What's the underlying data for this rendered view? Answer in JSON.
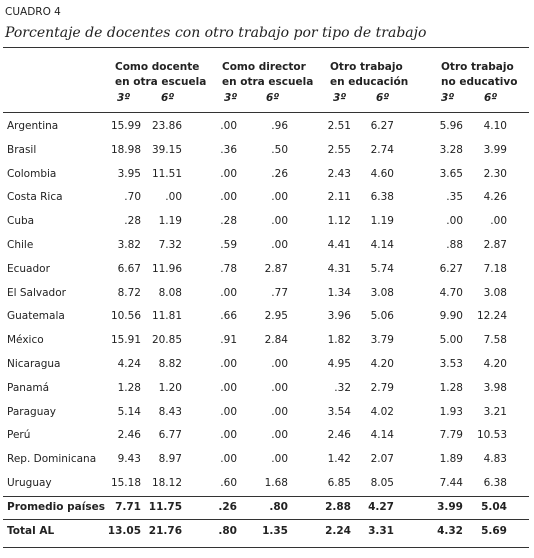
{
  "label": "CUADRO 4",
  "title": "Porcentaje de docentes con otro trabajo por tipo de trabajo",
  "table": {
    "groups": [
      {
        "line1": "Como docente",
        "line2": "en otra escuela",
        "sub": [
          "3º",
          "6º"
        ]
      },
      {
        "line1": "Como director",
        "line2": "en otra escuela",
        "sub": [
          "3º",
          "6º"
        ]
      },
      {
        "line1": "Otro trabajo",
        "line2": "en educación",
        "sub": [
          "3º",
          "6º"
        ]
      },
      {
        "line1": "Otro trabajo",
        "line2": "no educativo",
        "sub": [
          "3º",
          "6º"
        ]
      }
    ],
    "rows": [
      [
        "Argentina",
        "15.99",
        "23.86",
        ".00",
        ".96",
        "2.51",
        "6.27",
        "5.96",
        "4.10"
      ],
      [
        "Brasil",
        "18.98",
        "39.15",
        ".36",
        ".50",
        "2.55",
        "2.74",
        "3.28",
        "3.99"
      ],
      [
        "Colombia",
        "3.95",
        "11.51",
        ".00",
        ".26",
        "2.43",
        "4.60",
        "3.65",
        "2.30"
      ],
      [
        "Costa Rica",
        ".70",
        ".00",
        ".00",
        ".00",
        "2.11",
        "6.38",
        ".35",
        "4.26"
      ],
      [
        "Cuba",
        ".28",
        "1.19",
        ".28",
        ".00",
        "1.12",
        "1.19",
        ".00",
        ".00"
      ],
      [
        "Chile",
        "3.82",
        "7.32",
        ".59",
        ".00",
        "4.41",
        "4.14",
        ".88",
        "2.87"
      ],
      [
        "Ecuador",
        "6.67",
        "11.96",
        ".78",
        "2.87",
        "4.31",
        "5.74",
        "6.27",
        "7.18"
      ],
      [
        "El Salvador",
        "8.72",
        "8.08",
        ".00",
        ".77",
        "1.34",
        "3.08",
        "4.70",
        "3.08"
      ],
      [
        "Guatemala",
        "10.56",
        "11.81",
        ".66",
        "2.95",
        "3.96",
        "5.06",
        "9.90",
        "12.24"
      ],
      [
        "México",
        "15.91",
        "20.85",
        ".91",
        "2.84",
        "1.82",
        "3.79",
        "5.00",
        "7.58"
      ],
      [
        "Nicaragua",
        "4.24",
        "8.82",
        ".00",
        ".00",
        "4.95",
        "4.20",
        "3.53",
        "4.20"
      ],
      [
        "Panamá",
        "1.28",
        "1.20",
        ".00",
        ".00",
        ".32",
        "2.79",
        "1.28",
        "3.98"
      ],
      [
        "Paraguay",
        "5.14",
        "8.43",
        ".00",
        ".00",
        "3.54",
        "4.02",
        "1.93",
        "3.21"
      ],
      [
        "Perú",
        "2.46",
        "6.77",
        ".00",
        ".00",
        "2.46",
        "4.14",
        "7.79",
        "10.53"
      ],
      [
        "Rep. Dominicana",
        "9.43",
        "8.97",
        ".00",
        ".00",
        "1.42",
        "2.07",
        "1.89",
        "4.83"
      ],
      [
        "Uruguay",
        "15.18",
        "18.12",
        ".60",
        "1.68",
        "6.85",
        "8.05",
        "7.44",
        "6.38"
      ]
    ],
    "summary": [
      [
        "Promedio países",
        "7.71",
        "11.75",
        ".26",
        ".80",
        "2.88",
        "4.27",
        "3.99",
        "5.04"
      ],
      [
        "Total AL",
        "13.05",
        "21.76",
        ".80",
        "1.35",
        "2.24",
        "3.31",
        "4.32",
        "5.69"
      ]
    ]
  }
}
